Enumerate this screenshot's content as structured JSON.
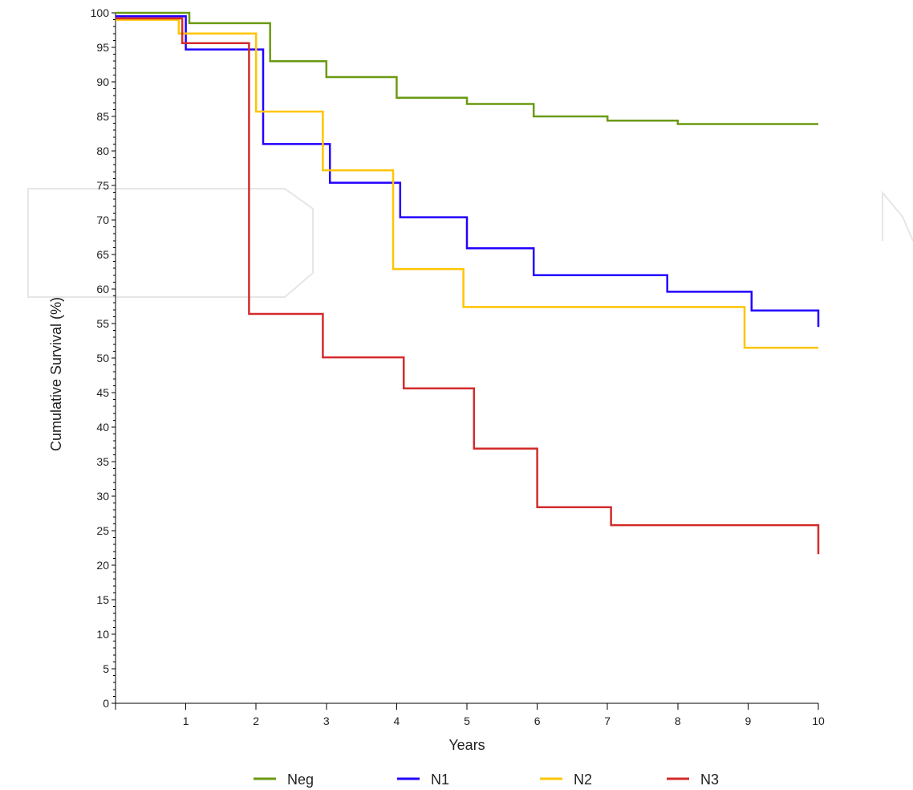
{
  "chart_data": {
    "type": "line",
    "step": true,
    "title": "",
    "xlabel": "Years",
    "ylabel": "Cumulative Survival (%)",
    "xlim": [
      0,
      10
    ],
    "ylim": [
      0,
      100
    ],
    "x_ticks": [
      "1",
      "2",
      "3",
      "4",
      "5",
      "6",
      "7",
      "8",
      "9",
      "10"
    ],
    "y_ticks": [
      "0",
      "5",
      "10",
      "15",
      "20",
      "25",
      "30",
      "35",
      "40",
      "45",
      "50",
      "55",
      "60",
      "65",
      "70",
      "75",
      "80",
      "85",
      "90",
      "95",
      "100"
    ],
    "grid": false,
    "legend_position": "bottom",
    "series": [
      {
        "name": "Neg",
        "color": "#6a9a12",
        "points": [
          [
            0,
            100
          ],
          [
            1.05,
            98.5
          ],
          [
            2.2,
            93
          ],
          [
            3,
            90.7
          ],
          [
            4,
            87.7
          ],
          [
            5,
            86.8
          ],
          [
            5.95,
            85
          ],
          [
            7,
            84.4
          ],
          [
            8,
            83.9
          ],
          [
            10,
            83.9
          ]
        ]
      },
      {
        "name": "N1",
        "color": "#2200ff",
        "points": [
          [
            0,
            99.5
          ],
          [
            1,
            94.7
          ],
          [
            2.1,
            81
          ],
          [
            3.05,
            75.4
          ],
          [
            4.05,
            70.4
          ],
          [
            5,
            65.9
          ],
          [
            5.95,
            62
          ],
          [
            7.85,
            59.6
          ],
          [
            9.05,
            56.9
          ],
          [
            10,
            56.9
          ],
          [
            10,
            54.5
          ]
        ]
      },
      {
        "name": "N2",
        "color": "#ffc400",
        "points": [
          [
            0,
            99
          ],
          [
            0.9,
            97
          ],
          [
            2,
            85.7
          ],
          [
            2.95,
            77.2
          ],
          [
            3.95,
            62.9
          ],
          [
            4.95,
            57.4
          ],
          [
            8.95,
            51.5
          ],
          [
            10,
            51.5
          ]
        ]
      },
      {
        "name": "N3",
        "color": "#d42b2b",
        "points": [
          [
            0,
            99.2
          ],
          [
            0.95,
            95.6
          ],
          [
            1.9,
            56.4
          ],
          [
            2.95,
            50.1
          ],
          [
            4.1,
            45.6
          ],
          [
            5.1,
            36.9
          ],
          [
            6,
            28.4
          ],
          [
            7.05,
            25.8
          ],
          [
            10,
            25.8
          ],
          [
            10,
            21.6
          ]
        ]
      }
    ]
  }
}
